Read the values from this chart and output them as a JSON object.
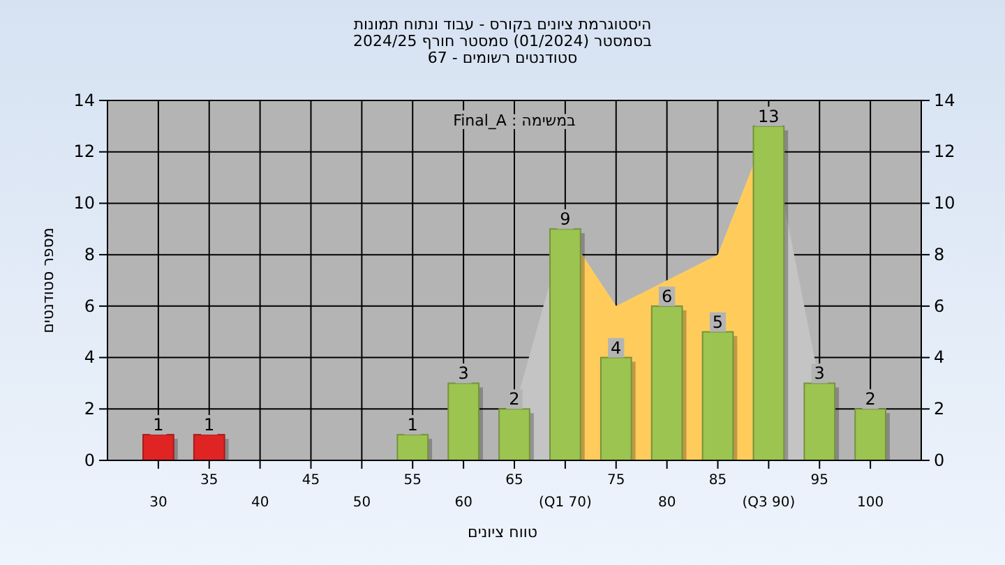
{
  "chart_data": {
    "type": "bar",
    "title": "היסטוגרמת ציונים בקורס - עבוד ונתוח תמונות",
    "subtitle": "בסמסטר  (01/2024)  סמסטר חורף 2024/25\nסטודנטים רשומים - 67",
    "xlabel": "טווח ציונים",
    "ylabel": "מספר סטודנטים",
    "annotations": [
      "במשימה : Final_A"
    ],
    "categories": [
      "30",
      "35",
      "40",
      "45",
      "50",
      "55",
      "60",
      "65",
      "(Q1 70)",
      "75",
      "80",
      "85",
      "(Q3 90)",
      "95",
      "100"
    ],
    "series": [
      {
        "type": "area",
        "color": "#c4c4c4",
        "values": [
          null,
          null,
          null,
          null,
          null,
          null,
          null,
          2,
          9,
          6,
          null,
          8,
          13,
          3,
          null
        ]
      },
      {
        "type": "area",
        "color": "#ffcc5c",
        "values": [
          null,
          null,
          null,
          null,
          null,
          null,
          null,
          null,
          9,
          6,
          null,
          8,
          13,
          null,
          null
        ]
      },
      {
        "colors": [
          "#e02424",
          "#e02424",
          "#9cc450",
          "#9cc450",
          "#9cc450",
          "#9cc450",
          "#9cc450",
          "#9cc450",
          "#9cc450",
          "#9cc450",
          "#9cc450",
          "#9cc450",
          "#9cc450",
          "#9cc450",
          "#9cc450"
        ],
        "values": [
          1,
          1,
          0,
          0,
          0,
          1,
          3,
          2,
          9,
          4,
          6,
          5,
          13,
          3,
          2
        ],
        "value_labels": [
          "1",
          "1",
          null,
          null,
          null,
          "1",
          "3",
          "2",
          "9",
          "4",
          "6",
          "5",
          "13",
          "3",
          "2"
        ]
      }
    ],
    "ylim": [
      0,
      14
    ],
    "yticks": [
      0,
      2,
      4,
      6,
      8,
      10,
      12,
      14
    ],
    "y2lim": [
      0,
      14
    ],
    "y2ticks": [
      0,
      2,
      4,
      6,
      8,
      10,
      12,
      14
    ],
    "grid": true
  }
}
